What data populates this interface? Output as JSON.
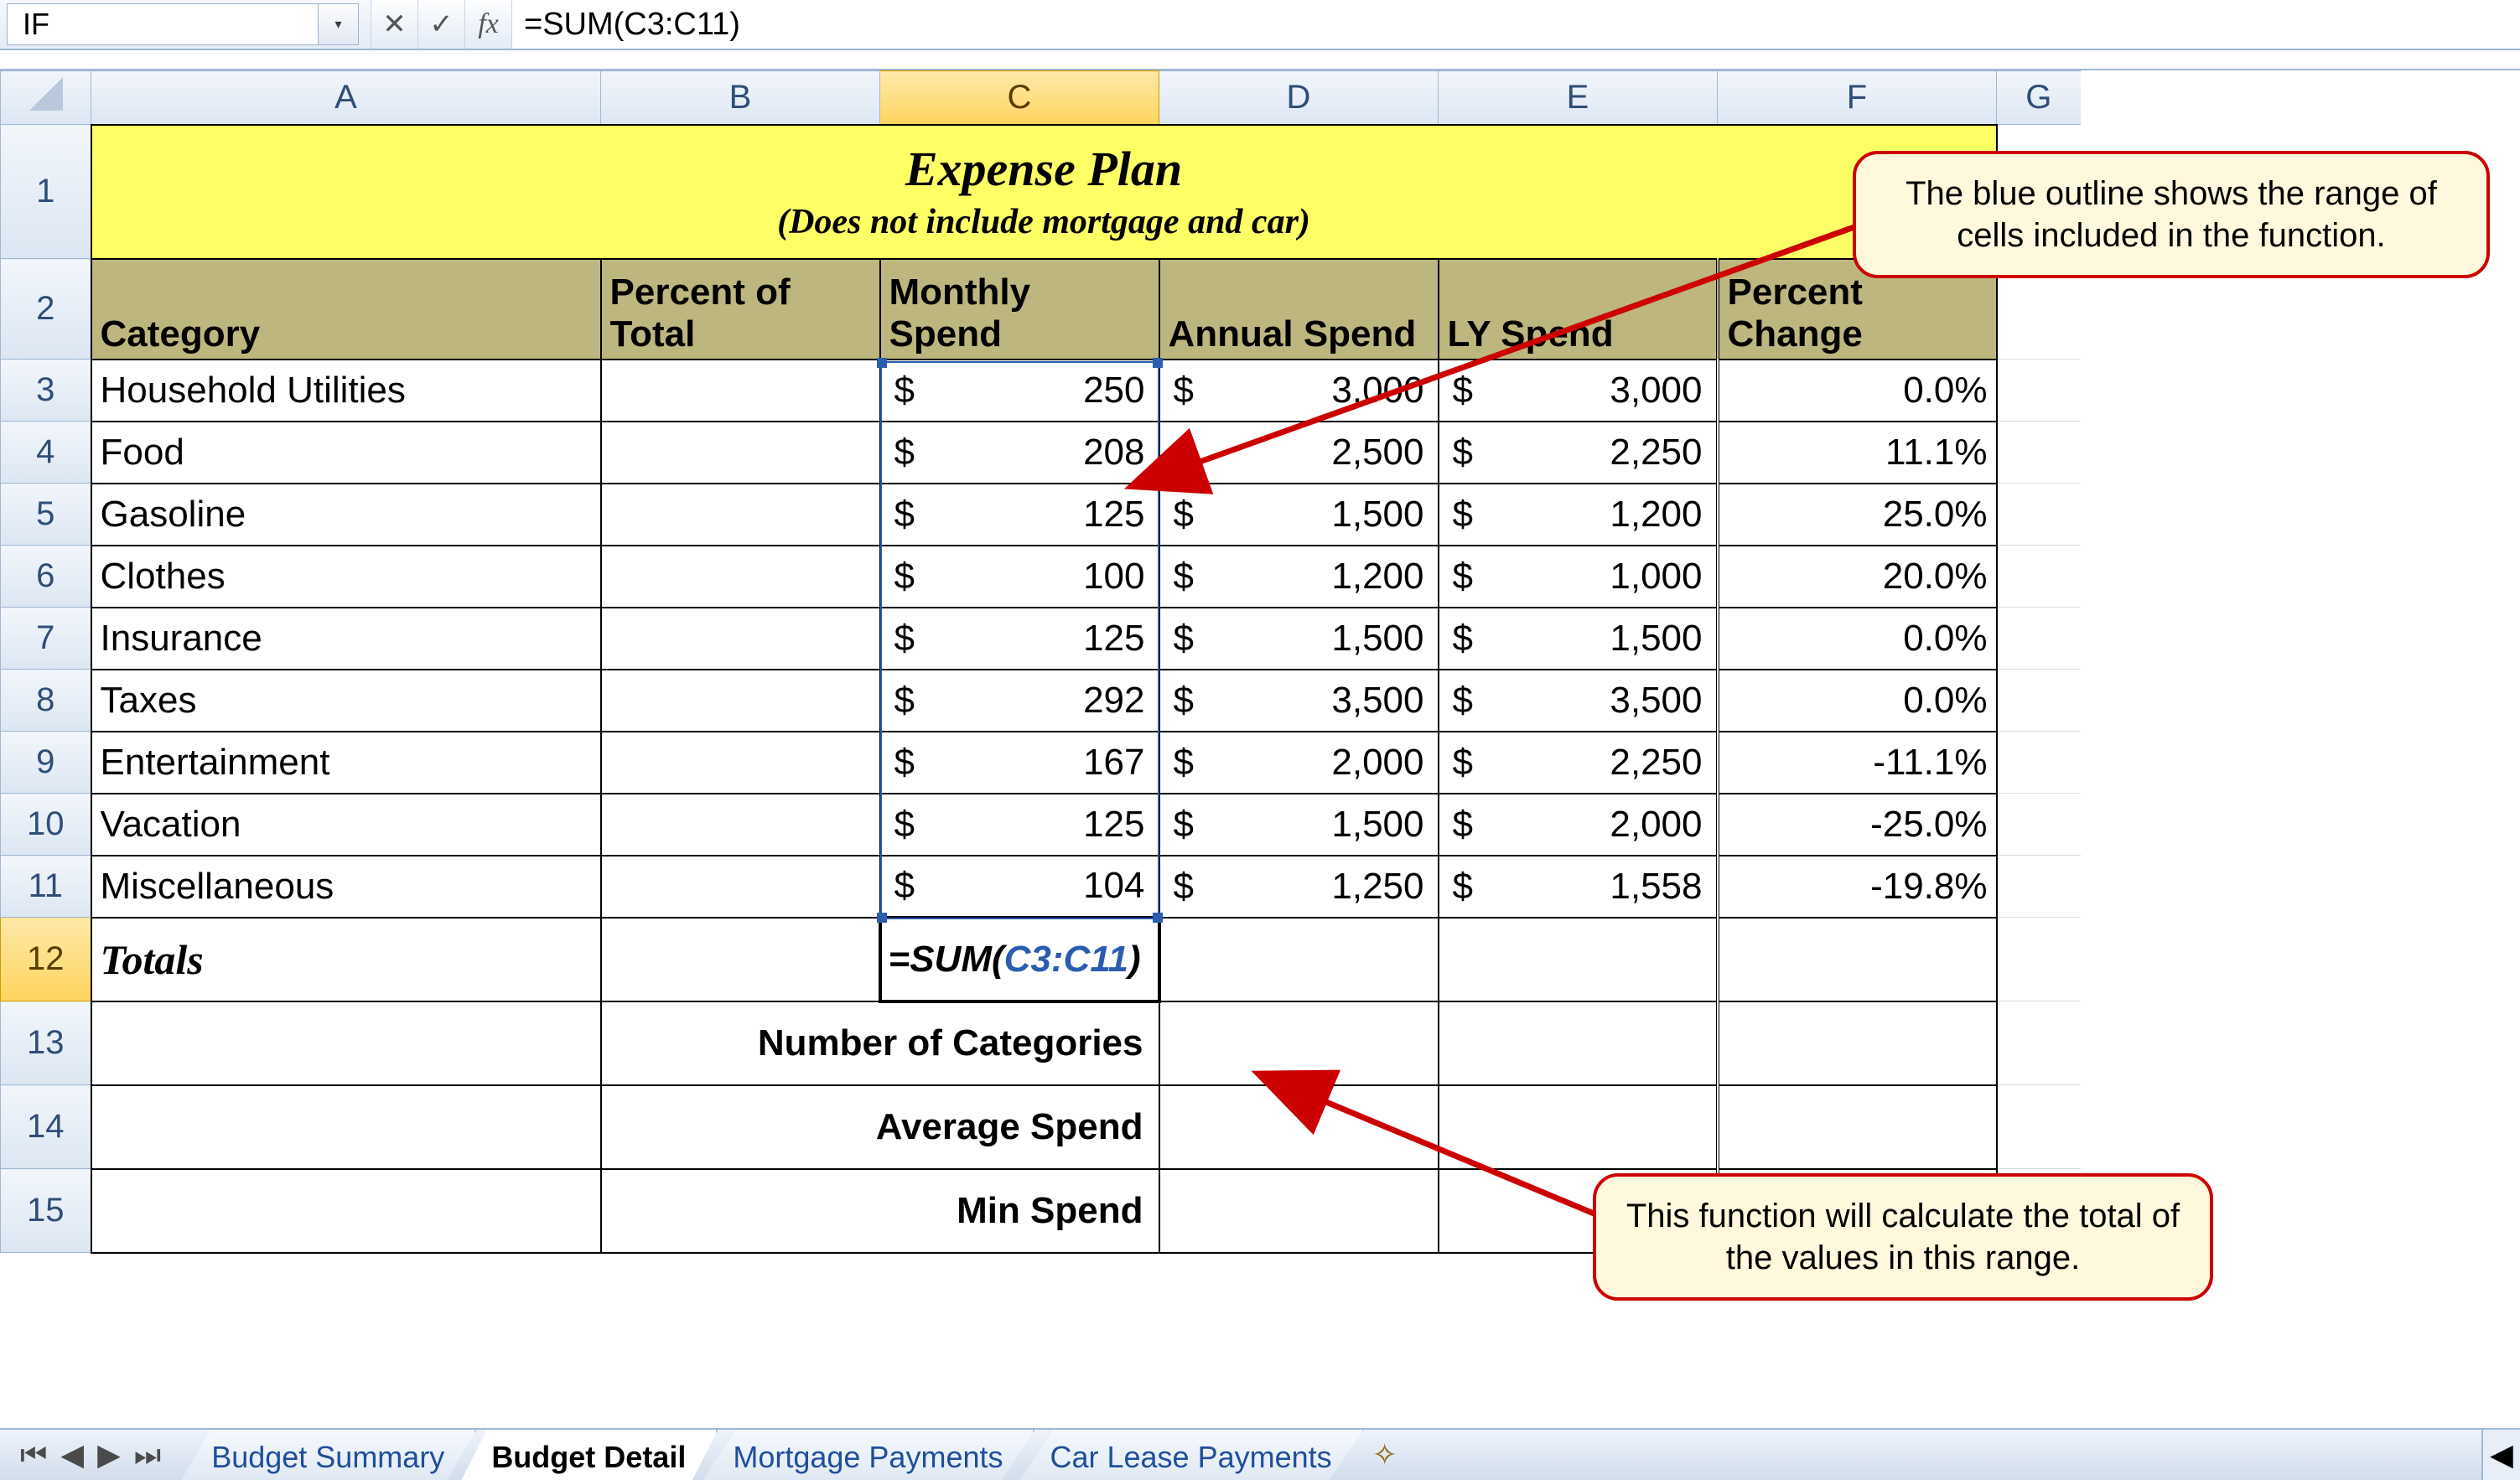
{
  "formula_bar": {
    "name_box": "IF",
    "cancel_glyph": "✕",
    "enter_glyph": "✓",
    "fx_glyph": "fx",
    "dropdown_glyph": "▾",
    "formula": "=SUM(C3:C11)"
  },
  "columns": [
    "A",
    "B",
    "C",
    "D",
    "E",
    "F",
    "G"
  ],
  "title": {
    "main": "Expense Plan",
    "sub": "(Does not include mortgage and car)"
  },
  "headers": {
    "A": "Category",
    "B": "Percent of Total",
    "C": "Monthly Spend",
    "D": "Annual Spend",
    "E": "LY Spend",
    "F": "Percent Change"
  },
  "rows": [
    {
      "n": 3,
      "cat": "Household Utilities",
      "m": "250",
      "a": "3,000",
      "ly": "3,000",
      "pc": "0.0%"
    },
    {
      "n": 4,
      "cat": "Food",
      "m": "208",
      "a": "2,500",
      "ly": "2,250",
      "pc": "11.1%"
    },
    {
      "n": 5,
      "cat": "Gasoline",
      "m": "125",
      "a": "1,500",
      "ly": "1,200",
      "pc": "25.0%"
    },
    {
      "n": 6,
      "cat": "Clothes",
      "m": "100",
      "a": "1,200",
      "ly": "1,000",
      "pc": "20.0%"
    },
    {
      "n": 7,
      "cat": "Insurance",
      "m": "125",
      "a": "1,500",
      "ly": "1,500",
      "pc": "0.0%"
    },
    {
      "n": 8,
      "cat": "Taxes",
      "m": "292",
      "a": "3,500",
      "ly": "3,500",
      "pc": "0.0%"
    },
    {
      "n": 9,
      "cat": "Entertainment",
      "m": "167",
      "a": "2,000",
      "ly": "2,250",
      "pc": "-11.1%"
    },
    {
      "n": 10,
      "cat": "Vacation",
      "m": "125",
      "a": "1,500",
      "ly": "2,000",
      "pc": "-25.0%"
    },
    {
      "n": 11,
      "cat": "Miscellaneous",
      "m": "104",
      "a": "1,250",
      "ly": "1,558",
      "pc": "-19.8%"
    }
  ],
  "totals": {
    "row": 12,
    "label": "Totals",
    "formula_prefix": "=SUM(",
    "formula_range": "C3:C11",
    "formula_suffix": ")"
  },
  "stats": [
    {
      "n": 13,
      "label": "Number of Categories"
    },
    {
      "n": 14,
      "label": "Average Spend"
    },
    {
      "n": 15,
      "label": "Min Spend"
    }
  ],
  "callouts": {
    "top": "The blue outline shows the range of cells included in the function.",
    "bottom": "This function will calculate the total of the values in this range."
  },
  "tabs": {
    "items": [
      "Budget Summary",
      "Budget Detail",
      "Mortgage Payments",
      "Car Lease Payments"
    ],
    "active_index": 1,
    "insert_glyph": "✧",
    "scroll_glyph": "◀",
    "nav": [
      "⏮",
      "◀",
      "▶",
      "⏭"
    ]
  },
  "style": {
    "title_bg": "#ffff66",
    "header_bg": "#bdb67e",
    "range_border": "#2a5db0",
    "callout_bg": "#fff8dc",
    "callout_border": "#cc0000",
    "colhdr_sel_bg": "#ffd45e",
    "grid_border": "#000000"
  }
}
